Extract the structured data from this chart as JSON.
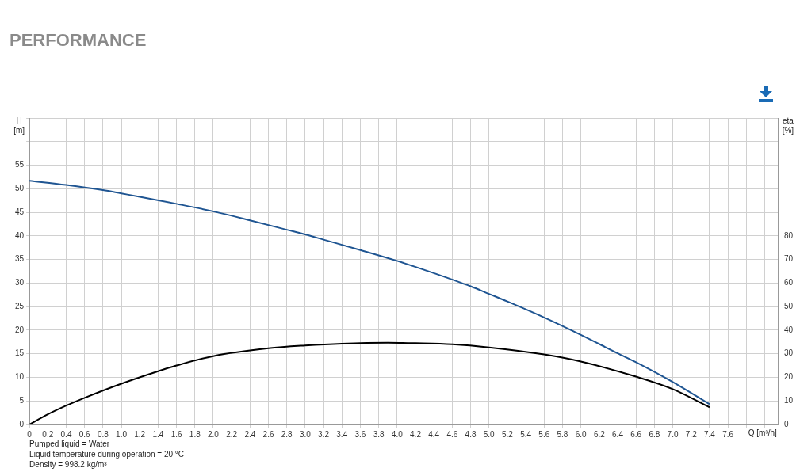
{
  "chart_data": {
    "type": "line",
    "title": "PERFORMANCE",
    "ylabel": "H [m]",
    "y2label": "eta [%]",
    "xlabel": "Q [m³/h]",
    "annotations": [
      "Pumped liquid = Water",
      "Liquid temperature during operation = 20 °C",
      "Density = 998.2 kg/m³"
    ],
    "xlim": [
      0,
      8.15
    ],
    "xticks": [
      0,
      0.2,
      0.4,
      0.6,
      0.8,
      "1.0",
      1.2,
      1.4,
      1.6,
      1.8,
      "2.0",
      2.2,
      2.4,
      2.6,
      2.8,
      "3.0",
      3.2,
      3.4,
      3.6,
      3.8,
      "4.0",
      4.2,
      4.4,
      4.6,
      4.8,
      "5.0",
      5.2,
      5.4,
      5.6,
      5.8,
      "6.0",
      6.2,
      6.4,
      6.6,
      6.8,
      "7.0",
      7.2,
      7.4,
      7.6,
      {
        "value": 7.8,
        "label": null
      },
      {
        "value": 8.0,
        "label": null
      }
    ],
    "ylim": [
      0,
      65
    ],
    "yticks": [
      0,
      5,
      10,
      15,
      20,
      25,
      30,
      35,
      40,
      45,
      50,
      55,
      {
        "value": 60,
        "label": null
      },
      {
        "value": 65,
        "label": null
      }
    ],
    "y2lim": [
      0,
      130
    ],
    "y2ticks": [
      0,
      10,
      20,
      30,
      40,
      50,
      60,
      70,
      80
    ],
    "grid": true,
    "legend": false,
    "marker": "none",
    "line_style": "solid",
    "series": [
      {
        "color": "#1f5592",
        "axis": "y",
        "x": [
          0,
          0.4,
          0.8,
          1.0,
          1.2,
          1.6,
          2.0,
          2.4,
          2.8,
          3.0,
          3.2,
          3.6,
          4.0,
          4.4,
          4.8,
          5.0,
          5.2,
          5.6,
          6.0,
          6.4,
          6.6,
          7.0,
          7.4
        ],
        "values": [
          51.7,
          50.8,
          49.7,
          49.0,
          48.3,
          46.8,
          45.2,
          43.3,
          41.3,
          40.3,
          39.2,
          37.0,
          34.7,
          32.1,
          29.3,
          27.7,
          26.1,
          22.7,
          19.0,
          15.1,
          13.2,
          9.0,
          4.3
        ]
      },
      {
        "color": "#000000",
        "axis": "y2",
        "x": [
          0,
          0.2,
          0.4,
          0.6,
          1.0,
          1.4,
          1.6,
          2.0,
          2.6,
          3.0,
          3.4,
          3.9,
          4.2,
          4.6,
          5.0,
          5.6,
          6.0,
          6.6,
          7.0,
          7.4
        ],
        "values": [
          0,
          4.3,
          8,
          11.3,
          17.3,
          22.6,
          25.0,
          29.0,
          32.3,
          33.5,
          34.3,
          34.7,
          34.5,
          34.0,
          32.7,
          29.7,
          26.7,
          20.3,
          15.0,
          7.3
        ]
      }
    ]
  }
}
